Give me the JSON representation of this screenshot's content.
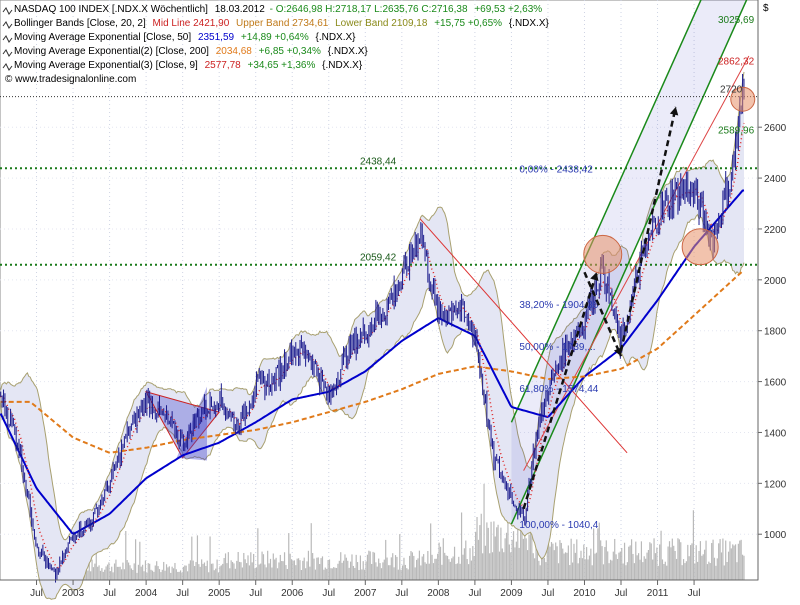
{
  "chart_data": {
    "type": "line",
    "currency_symbol": "$",
    "header": {
      "row1": {
        "name": "NASDAQ 100 INDEX [.NDX.X  Wöchentlich]",
        "date": "18.03.2012",
        "ohlc": "O:2646,98 H:2718,17 L:2635,76 C:2716,38",
        "change": "+69,53 +2,63%"
      },
      "row2": {
        "name": "Bollinger Bands [Close, 20, 2]",
        "mid": "Mid Line 2421,90",
        "upper": "Upper Band 2734,61",
        "lower": "Lower Band 2109,18",
        "change": "+15,75 +0,65%",
        "sym": "{.NDX.X}"
      },
      "row3": {
        "name": "Moving Average Exponential [Close, 50]",
        "value": "2351,59",
        "change": "+14,89 +0,64%",
        "sym": "{.NDX.X}"
      },
      "row4": {
        "name": "Moving Average Exponential(2) [Close, 200]",
        "value": "2034,68",
        "change": "+6,85 +0,34%",
        "sym": "{.NDX.X}"
      },
      "row5": {
        "name": "Moving Average Exponential(3) [Close, 9]",
        "value": "2577,78",
        "change": "+34,65 +1,36%",
        "sym": "{.NDX.X}"
      },
      "watermark": "© www.tradesignalonline.com"
    },
    "y_axis": {
      "ylim": [
        820,
        3100
      ],
      "ticks": [
        1000,
        1200,
        1400,
        1600,
        1800,
        2000,
        2200,
        2400,
        2600
      ]
    },
    "x_axis": {
      "ticks": [
        {
          "date": "2002-07",
          "label": "Jul"
        },
        {
          "date": "2003-01",
          "label": "2003"
        },
        {
          "date": "2003-07",
          "label": "Jul"
        },
        {
          "date": "2004-01",
          "label": "2004"
        },
        {
          "date": "2004-07",
          "label": "Jul"
        },
        {
          "date": "2005-01",
          "label": "2005"
        },
        {
          "date": "2005-07",
          "label": "Jul"
        },
        {
          "date": "2006-01",
          "label": "2006"
        },
        {
          "date": "2006-07",
          "label": "Jul"
        },
        {
          "date": "2007-01",
          "label": "2007"
        },
        {
          "date": "2007-07",
          "label": "Jul"
        },
        {
          "date": "2008-01",
          "label": "2008"
        },
        {
          "date": "2008-07",
          "label": "Jul"
        },
        {
          "date": "2009-01",
          "label": "2009"
        },
        {
          "date": "2009-07",
          "label": "Jul"
        },
        {
          "date": "2010-01",
          "label": "2010"
        },
        {
          "date": "2010-07",
          "label": "Jul"
        },
        {
          "date": "2011-01",
          "label": "2011"
        },
        {
          "date": "2011-07",
          "label": "Jul"
        }
      ]
    },
    "series": [
      {
        "name": "NASDAQ 100 INDEX",
        "color": "#1a1a8c",
        "points": [
          [
            "2002-01",
            1550
          ],
          [
            "2002-04",
            1360
          ],
          [
            "2002-07",
            960
          ],
          [
            "2002-10",
            830
          ],
          [
            "2003-01",
            1000
          ],
          [
            "2003-04",
            1050
          ],
          [
            "2003-07",
            1200
          ],
          [
            "2003-10",
            1400
          ],
          [
            "2004-01",
            1530
          ],
          [
            "2004-04",
            1460
          ],
          [
            "2004-07",
            1360
          ],
          [
            "2004-10",
            1480
          ],
          [
            "2005-01",
            1530
          ],
          [
            "2005-04",
            1420
          ],
          [
            "2005-07",
            1580
          ],
          [
            "2005-10",
            1600
          ],
          [
            "2006-01",
            1730
          ],
          [
            "2006-04",
            1700
          ],
          [
            "2006-07",
            1530
          ],
          [
            "2006-10",
            1720
          ],
          [
            "2007-01",
            1800
          ],
          [
            "2007-04",
            1880
          ],
          [
            "2007-07",
            2000
          ],
          [
            "2007-10",
            2200
          ],
          [
            "2008-01",
            1850
          ],
          [
            "2008-04",
            1900
          ],
          [
            "2008-07",
            1790
          ],
          [
            "2008-10",
            1300
          ],
          [
            "2009-01",
            1150
          ],
          [
            "2009-03",
            1050
          ],
          [
            "2009-05",
            1380
          ],
          [
            "2009-07",
            1570
          ],
          [
            "2009-10",
            1740
          ],
          [
            "2010-01",
            1850
          ],
          [
            "2010-04",
            2050
          ],
          [
            "2010-07",
            1740
          ],
          [
            "2010-10",
            2050
          ],
          [
            "2011-01",
            2250
          ],
          [
            "2011-04",
            2350
          ],
          [
            "2011-07",
            2350
          ],
          [
            "2011-10",
            2150
          ],
          [
            "2012-01",
            2400
          ],
          [
            "2012-03",
            2716
          ]
        ]
      },
      {
        "name": "Moving Average Exponential [Close, 50]",
        "color": "#0000cc",
        "points": [
          [
            "2002-01",
            1480
          ],
          [
            "2002-07",
            1180
          ],
          [
            "2003-01",
            1000
          ],
          [
            "2003-07",
            1080
          ],
          [
            "2004-01",
            1220
          ],
          [
            "2004-07",
            1310
          ],
          [
            "2005-01",
            1360
          ],
          [
            "2005-07",
            1440
          ],
          [
            "2006-01",
            1530
          ],
          [
            "2006-07",
            1560
          ],
          [
            "2007-01",
            1640
          ],
          [
            "2007-07",
            1760
          ],
          [
            "2008-01",
            1850
          ],
          [
            "2008-07",
            1780
          ],
          [
            "2009-01",
            1500
          ],
          [
            "2009-07",
            1460
          ],
          [
            "2010-01",
            1620
          ],
          [
            "2010-07",
            1730
          ],
          [
            "2011-01",
            1920
          ],
          [
            "2011-07",
            2130
          ],
          [
            "2012-03",
            2351.59
          ]
        ]
      },
      {
        "name": "Moving Average Exponential(2) [Close, 200]",
        "color": "#e07a1a",
        "points": [
          [
            "2002-06",
            1520
          ],
          [
            "2003-01",
            1380
          ],
          [
            "2003-07",
            1320
          ],
          [
            "2004-01",
            1340
          ],
          [
            "2004-07",
            1370
          ],
          [
            "2005-01",
            1390
          ],
          [
            "2005-07",
            1410
          ],
          [
            "2006-01",
            1440
          ],
          [
            "2006-07",
            1480
          ],
          [
            "2007-01",
            1520
          ],
          [
            "2007-07",
            1570
          ],
          [
            "2008-01",
            1630
          ],
          [
            "2008-07",
            1660
          ],
          [
            "2009-01",
            1640
          ],
          [
            "2009-07",
            1610
          ],
          [
            "2010-01",
            1620
          ],
          [
            "2010-07",
            1650
          ],
          [
            "2011-01",
            1730
          ],
          [
            "2011-07",
            1860
          ],
          [
            "2012-03",
            2034.68
          ]
        ]
      }
    ],
    "horizontal_levels": [
      {
        "value": 2438.44,
        "label": "2438,44",
        "color": "#1a7a1a"
      },
      {
        "value": 2059.42,
        "label": "2059,42",
        "color": "#1a7a1a"
      },
      {
        "value": 2720,
        "label": "2720",
        "color": "#333333"
      }
    ],
    "fibonacci": [
      {
        "level": "0,00% - 2438,42",
        "value": 2438.42
      },
      {
        "level": "38,20% - 1904,36",
        "value": 1904.36
      },
      {
        "level": "50,00% - 1739,...",
        "value": 1739
      },
      {
        "level": "61,80% - 1574,44",
        "value": 1574.44
      },
      {
        "level": "100,00% - 1040,4",
        "value": 1040.4
      }
    ],
    "right_labels": [
      {
        "value": 3025.69,
        "label": "3025,69",
        "color": "#1a7a1a"
      },
      {
        "value": 2862.32,
        "label": "2862,32",
        "color": "#cc2222"
      },
      {
        "value": 2589.96,
        "label": "2589,96",
        "color": "#1a7a1a"
      }
    ],
    "legend": {
      "row1": "NASDAQ 100 INDEX [.NDX.X  Wöchentlich] 18.03.2012 - O:2646,98 H:2718,17 L:2635,76 C:2716,38 +69,53 +2,63%",
      "row2": "Bollinger Bands [Close, 20, 2] Mid Line 2421,90 Upper Band 2734,61 Lower Band 2109,18 +15,75 +0,65% {.NDX.X}",
      "row3": "Moving Average Exponential [Close, 50] 2351,59 +14,89 +0,64% {.NDX.X}",
      "row4": "Moving Average Exponential(2) [Close, 200] 2034,68 +6,85 +0,34% {.NDX.X}",
      "row5": "Moving Average Exponential(3) [Close, 9] 2577,78 +34,65 +1,36% {.NDX.X}"
    },
    "grid": true,
    "legend_placement": "top-left",
    "colors": {
      "price": "#1a1a8c",
      "ema50": "#0000cc",
      "ema200": "#e07a1a",
      "ema9": "#dd2222",
      "bollinger_fill": "#e4e6f4",
      "bollinger_border": "#a8a070",
      "channel": "#1a8a1a",
      "support": "#1a7a1a",
      "fib": "#2a3ab0"
    }
  }
}
